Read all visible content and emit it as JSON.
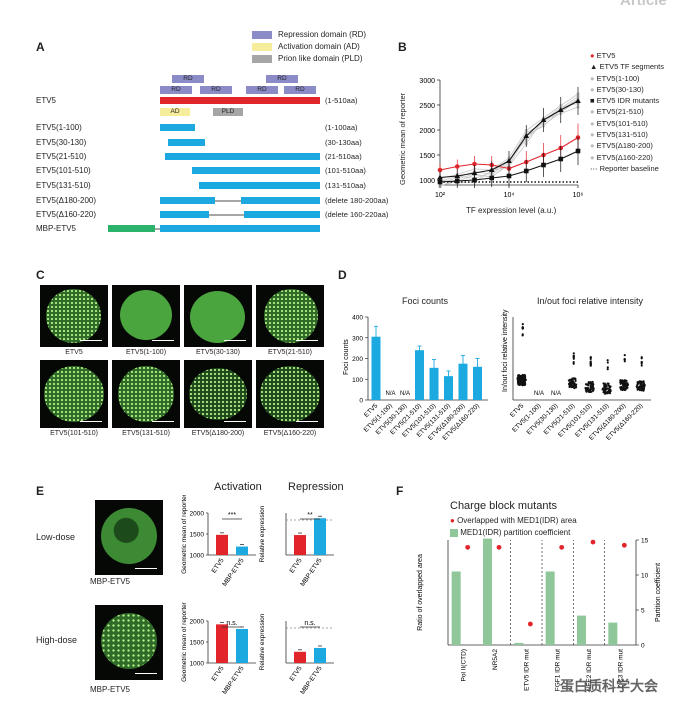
{
  "watermark": "Article",
  "panel_labels": [
    "A",
    "B",
    "C",
    "D",
    "E",
    "F"
  ],
  "legend_A": [
    {
      "label": "Repression domain (RD)",
      "color": "#8b8bc8"
    },
    {
      "label": "Activation domain (AD)",
      "color": "#f5ec9c"
    },
    {
      "label": "Prion like domain (PLD)",
      "color": "#a6a6a6"
    }
  ],
  "constructs": [
    {
      "name": "ETV5",
      "desc": "(1-510aa)"
    },
    {
      "name": "ETV5(1-100)",
      "desc": "(1-100aa)"
    },
    {
      "name": "ETV5(30-130)",
      "desc": "(30-130aa)"
    },
    {
      "name": "ETV5(21-510)",
      "desc": "(21-510aa)"
    },
    {
      "name": "ETV5(101-510)",
      "desc": "(101-510aa)"
    },
    {
      "name": "ETV5(131-510)",
      "desc": "(131-510aa)"
    },
    {
      "name": "ETV5(Δ180-200)",
      "desc": "(delete 180-200aa)"
    },
    {
      "name": "ETV5(Δ160-220)",
      "desc": "(delete 160-220aa)"
    },
    {
      "name": "MBP-ETV5",
      "desc": ""
    }
  ],
  "domains": {
    "rd": "RD",
    "ad": "AD",
    "pld": "PLD"
  },
  "colors": {
    "full": "#e2242b",
    "construct": "#1ba9e0",
    "mbp": "#2bb36b",
    "rd": "#8b8bc8",
    "ad": "#f5ec9c",
    "pld": "#a6a6a6",
    "red": "#e2242b",
    "blue": "#1ba9e0",
    "green": "#8fc79a"
  },
  "chart_B": {
    "type": "line",
    "xlabel": "TF expression level (a.u.)",
    "ylabel": "Geometric mean of reporter",
    "xticks": [
      "10²",
      "10⁴",
      "10⁶"
    ],
    "yticks": [
      1000,
      1500,
      2000,
      2500,
      3000
    ],
    "ylim": [
      900,
      3000
    ],
    "legend": [
      "ETV5",
      "ETV5 TF segments",
      "ETV5(1-100)",
      "ETV5(30-130)",
      "ETV5 IDR mutants",
      "ETV5(21-510)",
      "ETV5(101-510)",
      "ETV5(131-510)",
      "ETV5(Δ180-200)",
      "ETV5(Δ160-220)",
      "Reporter baseline"
    ]
  },
  "chart_data": [
    {
      "type": "line",
      "xlabel": "TF expression level (a.u.)",
      "ylabel": "Geometric mean of reporter",
      "x_log10": [
        2,
        2.5,
        3,
        3.5,
        4,
        4.5,
        5,
        5.5,
        6
      ],
      "series": [
        {
          "name": "ETV5",
          "values": [
            1200,
            1270,
            1320,
            1300,
            1230,
            1360,
            1500,
            1640,
            1850
          ]
        },
        {
          "name": "ETV5 TF segments",
          "values": [
            1050,
            1080,
            1140,
            1200,
            1380,
            1880,
            2200,
            2400,
            2580
          ]
        },
        {
          "name": "ETV5 IDR mutants",
          "values": [
            960,
            980,
            1000,
            1040,
            1080,
            1180,
            1300,
            1420,
            1580
          ]
        },
        {
          "name": "Reporter baseline",
          "values": [
            830,
            830,
            830,
            830,
            830,
            830,
            830,
            830,
            830
          ]
        }
      ],
      "ylim": [
        900,
        3000
      ]
    },
    {
      "type": "bar",
      "title": "Foci counts",
      "ylabel": "Foci counts",
      "categories": [
        "ETV5",
        "ETV5(1-100)",
        "ETV5(30-130)",
        "ETV5(21-510)",
        "ETV5(101-510)",
        "ETV5(131-510)",
        "ETV5(Δ180-200)",
        "ETV5(Δ160-220)"
      ],
      "values": [
        305,
        null,
        null,
        240,
        155,
        115,
        175,
        160
      ],
      "errors": [
        50,
        null,
        null,
        20,
        40,
        25,
        40,
        40
      ],
      "ylim": [
        0,
        400
      ],
      "yticks": [
        0,
        100,
        200,
        300,
        400
      ]
    },
    {
      "type": "scatter",
      "title": "In/out foci relative intensity",
      "ylabel": "In/out foci relative intensity",
      "categories": [
        "ETV5",
        "ETV5(1-100)",
        "ETV5(30-130)",
        "ETV5(21-510)",
        "ETV5(101-510)",
        "ETV5(131-510)",
        "ETV5(Δ180-200)",
        "ETV5(Δ160-220)"
      ],
      "medians": [
        3.8,
        null,
        null,
        3.2,
        2.5,
        2.2,
        2.9,
        2.8
      ]
    },
    {
      "type": "bar",
      "title": "Activation",
      "rows": [
        "Low-dose",
        "High-dose"
      ],
      "ylabel": "Geometric mean of reporter",
      "categories": [
        "ETV5",
        "MBP-ETV5"
      ],
      "low_dose": [
        1480,
        1200
      ],
      "high_dose": [
        1920,
        1810
      ],
      "ylim": [
        1000,
        2000
      ],
      "significance": [
        "***",
        "n.s."
      ]
    },
    {
      "type": "bar",
      "title": "Repression",
      "ylabel": "Relative expression",
      "categories": [
        "ETV5",
        "MBP-ETV5"
      ],
      "low_dose": [
        0.57,
        1.05
      ],
      "high_dose": [
        0.32,
        0.43
      ],
      "significance": [
        "**",
        "n.s."
      ]
    },
    {
      "type": "bar",
      "title": "Charge block mutants",
      "ylabel": "Ratio of overlapped area",
      "y2label": "Partition coefficient",
      "categories": [
        "Pol II(CTD)",
        "NR5A2",
        "ETV5 IDR mut",
        "FGF1 IDR mut",
        "NFE2 IDR mut",
        "ZIC3 IDR mut"
      ],
      "legend": [
        "Overlapped with MED1(IDR) area",
        "MED1(IDR) partition coefficient"
      ],
      "partition": [
        10.5,
        15.2,
        0.3,
        10.5,
        4.2,
        3.2
      ],
      "overlap": [
        0.93,
        0.93,
        0.2,
        0.93,
        0.98,
        0.95
      ],
      "y2ticks": [
        0,
        5,
        10,
        15
      ]
    }
  ],
  "panel_C_captions": [
    "ETV5",
    "ETV5(1-100)",
    "ETV5(30-130)",
    "ETV5(21-510)",
    "ETV5(101-510)",
    "ETV5(131-510)",
    "ETV5(Δ180-200)",
    "ETV5(Δ160-220)"
  ],
  "panel_D_titles": {
    "left": "Foci counts",
    "right": "In/out foci relative intensity",
    "na": "N/A"
  },
  "panel_E": {
    "low": "Low-dose",
    "high": "High-dose",
    "caption": "MBP-ETV5",
    "activation": "Activation",
    "repression": "Repression",
    "act_ylabel": "Geometric mean of reporter",
    "rep_ylabel": "Relative expression",
    "xcats": [
      "ETV5",
      "MBP-ETV5"
    ]
  },
  "panel_F": {
    "title": "Charge block mutants"
  },
  "footer_watermark": "蛋白质科学大会"
}
